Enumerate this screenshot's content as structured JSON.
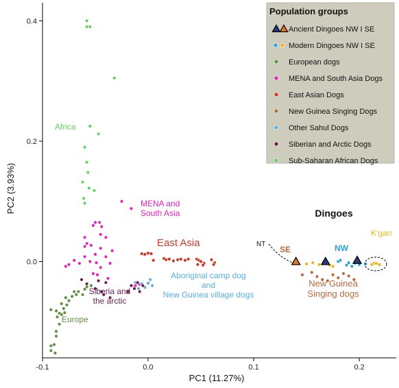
{
  "chart_data": {
    "type": "scatter",
    "xlabel": "PC1 (11.27%)",
    "ylabel": "PC2 (3.93%)",
    "xlim": [
      -0.1,
      0.235
    ],
    "ylim": [
      -0.16,
      0.43
    ],
    "x_ticks": [
      -0.1,
      0.0,
      0.1,
      0.2
    ],
    "x_tick_labels": [
      "-0.1",
      "0.0",
      "0.1",
      "0.2"
    ],
    "y_ticks": [
      0.0,
      0.2,
      0.4
    ],
    "y_tick_labels": [
      "0.0",
      "0.2",
      "0.4"
    ],
    "grid": false,
    "legend_placement": "top-right",
    "legend": {
      "title": "Population groups",
      "entries": [
        {
          "label": "Ancient Dingoes NW I SE",
          "marker": "triangles",
          "colors": [
            "#2d3a7a",
            "#e8782a"
          ]
        },
        {
          "label": "Modern Dingoes NW I SE",
          "marker": "dots",
          "colors": [
            "#29a3d6",
            "#f0b31c"
          ]
        },
        {
          "label": "European dogs",
          "marker": "dot",
          "colors": [
            "#5e8f3e"
          ]
        },
        {
          "label": "MENA and South Asia Dogs",
          "marker": "dot",
          "colors": [
            "#e61fbf"
          ]
        },
        {
          "label": "East Asian Dogs",
          "marker": "dot",
          "colors": [
            "#cc3826"
          ]
        },
        {
          "label": "New Guinea Singing Dogs",
          "marker": "dot",
          "colors": [
            "#b86a3c"
          ]
        },
        {
          "label": "Other Sahul Dogs",
          "marker": "dot",
          "colors": [
            "#5aaee0"
          ]
        },
        {
          "label": "Siberian and Arctic Dogs",
          "marker": "dot",
          "colors": [
            "#6b1d4f"
          ]
        },
        {
          "label": "Sub-Saharan African Dogs",
          "marker": "dot",
          "colors": [
            "#5fd35f"
          ]
        }
      ]
    },
    "annotations": [
      {
        "text": "Africa",
        "color": "#5fd35f"
      },
      {
        "text": "MENA and",
        "color": "#e61fbf"
      },
      {
        "text": "South Asia",
        "color": "#e61fbf"
      },
      {
        "text": "East Asia",
        "color": "#cc3826"
      },
      {
        "text": "Siberia and",
        "color": "#6b1d4f"
      },
      {
        "text": "the arctic",
        "color": "#6b1d4f"
      },
      {
        "text": "Europe",
        "color": "#5e8f3e"
      },
      {
        "text": "Aboriginal camp dog",
        "color": "#5aaee0"
      },
      {
        "text": "and",
        "color": "#5aaee0"
      },
      {
        "text": "New Guinea village dogs",
        "color": "#5aaee0"
      },
      {
        "text": "Dingoes",
        "color": "#111111"
      },
      {
        "text": "K'gari",
        "color": "#f0b31c"
      },
      {
        "text": "NT",
        "color": "#111111"
      },
      {
        "text": "SE",
        "color": "#b86a3c"
      },
      {
        "text": "NW",
        "color": "#29a3d6"
      },
      {
        "text": "New Guinea",
        "color": "#b86a3c"
      },
      {
        "text": "Singing dogs",
        "color": "#b86a3c"
      }
    ],
    "series": [
      {
        "name": "Sub-Saharan African Dogs",
        "color": "#5fd35f",
        "marker": "dot",
        "points": [
          [
            -0.058,
            0.4
          ],
          [
            -0.058,
            0.39
          ],
          [
            -0.055,
            0.39
          ],
          [
            -0.032,
            0.305
          ],
          [
            -0.055,
            0.225
          ],
          [
            -0.047,
            0.212
          ],
          [
            -0.06,
            0.19
          ],
          [
            -0.058,
            0.165
          ],
          [
            -0.057,
            0.148
          ],
          [
            -0.062,
            0.132
          ],
          [
            -0.056,
            0.122
          ],
          [
            -0.051,
            0.118
          ],
          [
            -0.061,
            0.105
          ],
          [
            -0.06,
            0.097
          ]
        ]
      },
      {
        "name": "MENA and South Asia Dogs",
        "color": "#e61fbf",
        "marker": "dot",
        "points": [
          [
            -0.025,
            0.1
          ],
          [
            -0.016,
            0.088
          ],
          [
            -0.05,
            0.065
          ],
          [
            -0.046,
            0.065
          ],
          [
            -0.052,
            0.06
          ],
          [
            -0.044,
            0.058
          ],
          [
            -0.045,
            0.045
          ],
          [
            -0.06,
            0.04
          ],
          [
            -0.04,
            0.04
          ],
          [
            -0.058,
            0.03
          ],
          [
            -0.054,
            0.027
          ],
          [
            -0.06,
            0.025
          ],
          [
            -0.045,
            0.022
          ],
          [
            -0.034,
            0.018
          ],
          [
            -0.05,
            0.012
          ],
          [
            -0.06,
            0.008
          ],
          [
            -0.04,
            0.008
          ],
          [
            -0.07,
            0.002
          ],
          [
            -0.055,
            0.0
          ],
          [
            -0.049,
            -0.002
          ],
          [
            -0.065,
            -0.003
          ],
          [
            -0.036,
            -0.003
          ],
          [
            -0.075,
            -0.005
          ],
          [
            -0.078,
            -0.008
          ],
          [
            -0.045,
            -0.01
          ],
          [
            -0.052,
            -0.02
          ],
          [
            -0.048,
            -0.022
          ],
          [
            -0.038,
            -0.028
          ],
          [
            -0.012,
            -0.04
          ],
          [
            -0.008,
            -0.038
          ],
          [
            -0.004,
            0.012
          ]
        ]
      },
      {
        "name": "East Asian Dogs",
        "color": "#cc3826",
        "marker": "dot",
        "points": [
          [
            -0.006,
            0.013
          ],
          [
            -0.003,
            0.012
          ],
          [
            0.0,
            0.014
          ],
          [
            0.003,
            0.013
          ],
          [
            0.015,
            0.005
          ],
          [
            0.017,
            0.003
          ],
          [
            0.02,
            0.004
          ],
          [
            0.028,
            0.003
          ],
          [
            0.031,
            0.004
          ],
          [
            0.035,
            0.002
          ],
          [
            0.038,
            0.004
          ],
          [
            0.046,
            0.004
          ],
          [
            0.048,
            0.002
          ],
          [
            0.05,
            0.0
          ],
          [
            0.053,
            -0.003
          ],
          [
            0.047,
            -0.005
          ],
          [
            0.052,
            -0.006
          ],
          [
            0.06,
            0.003
          ],
          [
            0.063,
            -0.002
          ],
          [
            0.062,
            -0.005
          ],
          [
            0.005,
            0.002
          ],
          [
            0.024,
            0.001
          ]
        ]
      },
      {
        "name": "Other Sahul Dogs",
        "color": "#5aaee0",
        "marker": "dot",
        "points": [
          [
            -0.012,
            -0.035
          ],
          [
            -0.009,
            -0.045
          ],
          [
            -0.006,
            -0.037
          ],
          [
            -0.003,
            -0.043
          ],
          [
            0.002,
            -0.03
          ],
          [
            0.004,
            -0.04
          ],
          [
            -0.015,
            -0.04
          ],
          [
            0.0,
            -0.036
          ]
        ]
      },
      {
        "name": "Siberian and Arctic Dogs",
        "color": "#6b1d4f",
        "marker": "dot",
        "points": [
          [
            -0.063,
            -0.03
          ],
          [
            -0.058,
            -0.037
          ],
          [
            -0.05,
            -0.045
          ],
          [
            -0.044,
            -0.05
          ],
          [
            -0.047,
            -0.032
          ],
          [
            -0.04,
            -0.035
          ],
          [
            -0.016,
            -0.04
          ],
          [
            -0.013,
            -0.045
          ],
          [
            -0.01,
            -0.035
          ],
          [
            -0.008,
            -0.05
          ],
          [
            -0.005,
            -0.04
          ],
          [
            -0.019,
            -0.05
          ],
          [
            -0.036,
            -0.06
          ],
          [
            -0.042,
            -0.055
          ]
        ]
      },
      {
        "name": "European dogs",
        "color": "#5e8f3e",
        "marker": "dot",
        "points": [
          [
            -0.092,
            -0.08
          ],
          [
            -0.087,
            -0.082
          ],
          [
            -0.084,
            -0.086
          ],
          [
            -0.086,
            -0.092
          ],
          [
            -0.082,
            -0.088
          ],
          [
            -0.079,
            -0.085
          ],
          [
            -0.08,
            -0.078
          ],
          [
            -0.077,
            -0.072
          ],
          [
            -0.082,
            -0.07
          ],
          [
            -0.075,
            -0.065
          ],
          [
            -0.078,
            -0.06
          ],
          [
            -0.072,
            -0.058
          ],
          [
            -0.068,
            -0.055
          ],
          [
            -0.066,
            -0.05
          ],
          [
            -0.06,
            -0.046
          ],
          [
            -0.058,
            -0.042
          ],
          [
            -0.054,
            -0.04
          ],
          [
            -0.062,
            -0.055
          ],
          [
            -0.07,
            -0.05
          ],
          [
            -0.084,
            -0.104
          ],
          [
            -0.087,
            -0.116
          ],
          [
            -0.087,
            -0.124
          ],
          [
            -0.089,
            -0.138
          ],
          [
            -0.092,
            -0.14
          ],
          [
            -0.092,
            -0.148
          ],
          [
            -0.088,
            -0.152
          ]
        ]
      },
      {
        "name": "New Guinea Singing Dogs",
        "color": "#b86a3c",
        "marker": "dot",
        "points": [
          [
            0.146,
            -0.022
          ],
          [
            0.16,
            -0.025
          ],
          [
            0.175,
            -0.022
          ],
          [
            0.185,
            -0.02
          ],
          [
            0.165,
            -0.03
          ],
          [
            0.18,
            -0.027
          ],
          [
            0.19,
            -0.024
          ],
          [
            0.155,
            -0.018
          ],
          [
            0.17,
            -0.032
          ],
          [
            0.195,
            -0.03
          ]
        ]
      },
      {
        "name": "Modern Dingoes NW",
        "color": "#29a3d6",
        "marker": "dot",
        "points": [
          [
            0.18,
            0.0
          ],
          [
            0.182,
            0.002
          ],
          [
            0.19,
            -0.002
          ],
          [
            0.193,
            -0.008
          ],
          [
            0.196,
            -0.003
          ],
          [
            0.188,
            -0.006
          ],
          [
            0.2,
            -0.005
          ],
          [
            0.206,
            -0.004
          ]
        ]
      },
      {
        "name": "Modern Dingoes SE",
        "color": "#f0b31c",
        "marker": "dot",
        "points": [
          [
            0.15,
            -0.004
          ],
          [
            0.156,
            -0.002
          ],
          [
            0.162,
            -0.005
          ],
          [
            0.168,
            -0.003
          ],
          [
            0.172,
            -0.006
          ],
          [
            0.175,
            -0.008
          ],
          [
            0.212,
            -0.005
          ],
          [
            0.214,
            -0.003
          ],
          [
            0.216,
            -0.003
          ],
          [
            0.219,
            -0.005
          ]
        ]
      },
      {
        "name": "Ancient Dingoes SE",
        "color": "#e8782a",
        "marker": "triangle",
        "points": [
          [
            0.14,
            0.0
          ]
        ]
      },
      {
        "name": "Ancient Dingoes NW",
        "color": "#2d3a7a",
        "marker": "triangle",
        "points": [
          [
            0.168,
            0.0
          ],
          [
            0.198,
            0.002
          ]
        ]
      }
    ]
  }
}
